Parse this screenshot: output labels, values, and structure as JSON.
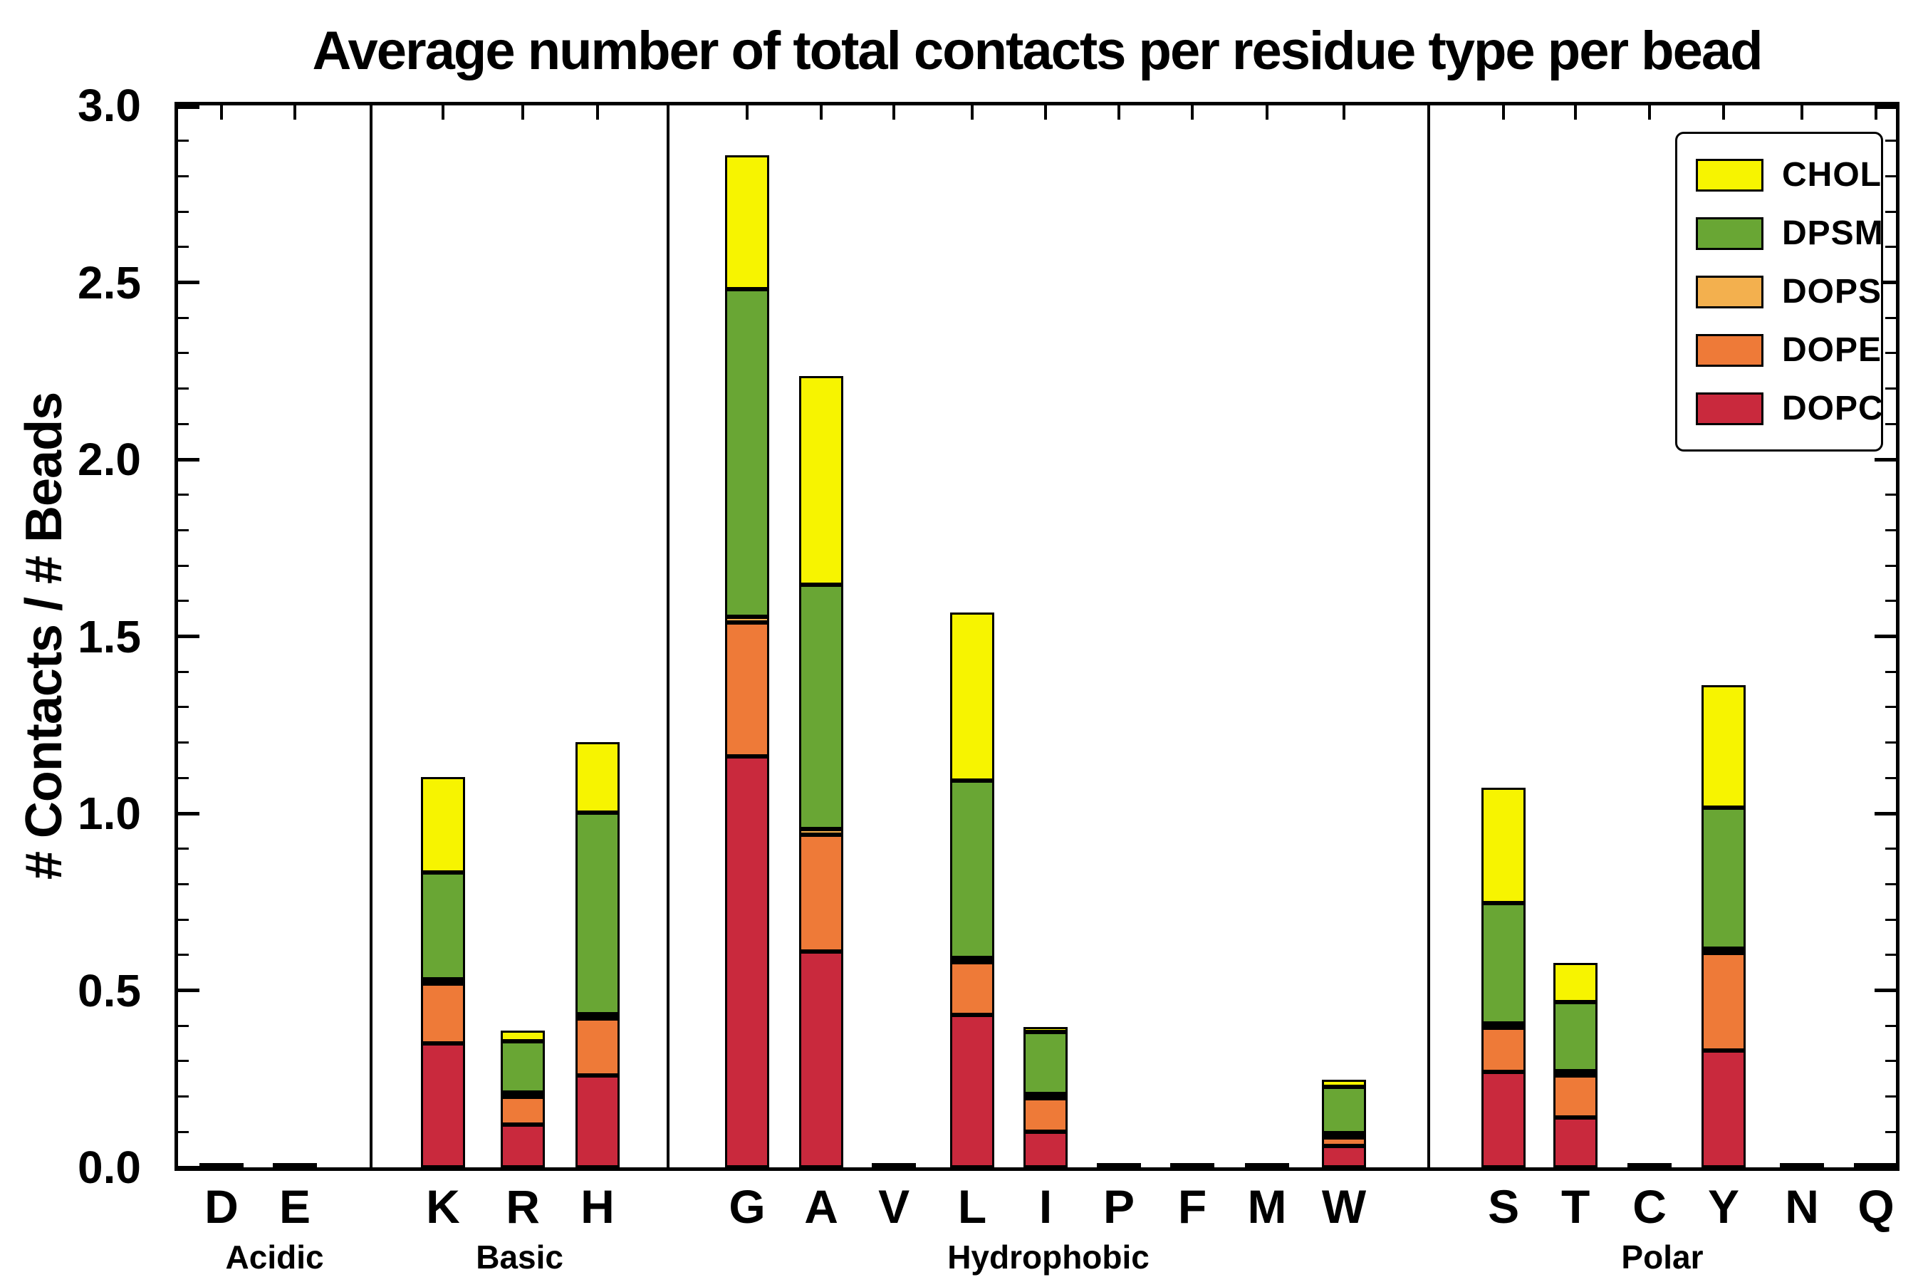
{
  "chart_data": {
    "type": "bar",
    "stacked": true,
    "title": "Average number of total contacts per residue type per bead",
    "xlabel": "",
    "ylabel": "# Contacts / # Beads",
    "ylim": [
      0,
      3.0
    ],
    "ytick_major_step": 0.5,
    "ytick_minor_step": 0.1,
    "grid": false,
    "groups": [
      {
        "label": "Acidic",
        "categories": [
          "D",
          "E"
        ]
      },
      {
        "label": "Basic",
        "categories": [
          "K",
          "R",
          "H"
        ]
      },
      {
        "label": "Hydrophobic",
        "categories": [
          "G",
          "A",
          "V",
          "L",
          "I",
          "P",
          "F",
          "M",
          "W"
        ]
      },
      {
        "label": "Polar",
        "categories": [
          "S",
          "T",
          "C",
          "Y",
          "N",
          "Q"
        ]
      }
    ],
    "categories": [
      "D",
      "E",
      "K",
      "R",
      "H",
      "G",
      "A",
      "V",
      "L",
      "I",
      "P",
      "F",
      "M",
      "W",
      "S",
      "T",
      "C",
      "Y",
      "N",
      "Q"
    ],
    "series": [
      {
        "name": "DOPC",
        "color": "#c9293d",
        "values": [
          0.005,
          0.005,
          0.35,
          0.12,
          0.26,
          1.16,
          0.61,
          0.008,
          0.43,
          0.1,
          0.008,
          0.004,
          0.006,
          0.06,
          0.27,
          0.14,
          0.003,
          0.33,
          0.007,
          0.003
        ]
      },
      {
        "name": "DOPE",
        "color": "#ee7a38",
        "values": [
          0,
          0,
          0.17,
          0.08,
          0.16,
          0.38,
          0.33,
          0,
          0.15,
          0.095,
          0,
          0,
          0,
          0.025,
          0.125,
          0.12,
          0,
          0.275,
          0,
          0
        ]
      },
      {
        "name": "DOPS",
        "color": "#f3b04e",
        "values": [
          0,
          0,
          0.01,
          0.005,
          0.01,
          0.015,
          0.015,
          0,
          0.005,
          0.005,
          0,
          0,
          0,
          0.005,
          0.01,
          0.005,
          0,
          0.01,
          0,
          0
        ]
      },
      {
        "name": "DPSM",
        "color": "#69a634",
        "values": [
          0,
          0,
          0.3,
          0.145,
          0.57,
          0.925,
          0.69,
          0,
          0.5,
          0.175,
          0,
          0,
          0,
          0.13,
          0.34,
          0.195,
          0,
          0.4,
          0,
          0
        ]
      },
      {
        "name": "CHOL",
        "color": "#f7f400",
        "values": [
          0,
          0,
          0.27,
          0.03,
          0.2,
          0.38,
          0.59,
          0,
          0.475,
          0.015,
          0,
          0,
          0,
          0.02,
          0.325,
          0.11,
          0,
          0.345,
          0,
          0
        ]
      }
    ],
    "legend": {
      "position": "upper right",
      "entries": [
        "CHOL",
        "DPSM",
        "DOPS",
        "DOPE",
        "DOPC"
      ]
    }
  }
}
